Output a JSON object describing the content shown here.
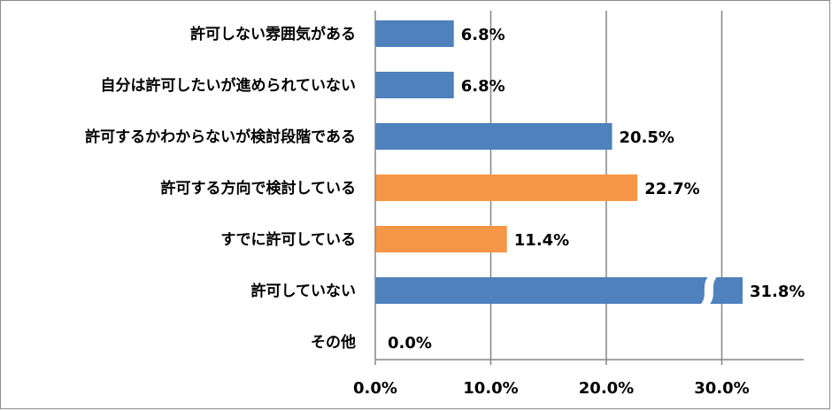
{
  "chart_data": {
    "type": "bar",
    "orientation": "horizontal",
    "categories": [
      "許可しない雰囲気がある",
      "自分は許可したいが進められていない",
      "許可するかわからないが検討段階である",
      "許可する方向で検討している",
      "すでに許可している",
      "許可していない",
      "その他"
    ],
    "values": [
      6.8,
      6.8,
      20.5,
      22.7,
      11.4,
      31.8,
      0.0
    ],
    "value_labels": [
      "6.8%",
      "6.8%",
      "20.5%",
      "22.7%",
      "11.4%",
      "31.8%",
      "0.0%"
    ],
    "colors": [
      "#4f81bd",
      "#4f81bd",
      "#4f81bd",
      "#f79646",
      "#f79646",
      "#4f81bd",
      "#4f81bd"
    ],
    "xlim": [
      0,
      37
    ],
    "x_ticks": [
      0,
      10,
      20,
      30
    ],
    "x_tick_labels": [
      "0.0%",
      "10.0%",
      "20.0%",
      "30.0%"
    ],
    "axis_break_on": "許可していない",
    "grid": true,
    "title": "",
    "xlabel": "",
    "ylabel": ""
  }
}
